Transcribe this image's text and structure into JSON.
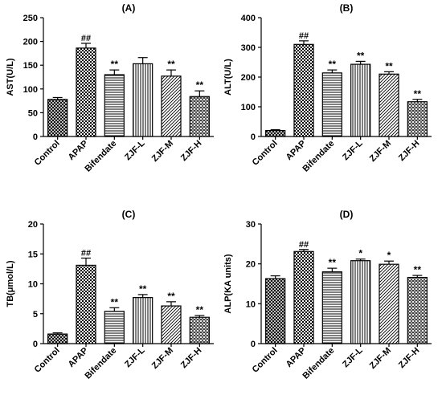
{
  "chart_data": [
    {
      "type": "bar",
      "title": "(A)",
      "ylabel": "AST(U/L)",
      "xlabel": "",
      "categories": [
        "Control",
        "APAP",
        "Bifendate",
        "ZJF-L",
        "ZJF-M",
        "ZJF-H"
      ],
      "values": [
        78,
        186,
        130,
        153,
        127,
        84
      ],
      "errors": [
        4,
        10,
        10,
        13,
        13,
        12
      ],
      "annotations": [
        "",
        "##",
        "**",
        "",
        "**",
        "**"
      ],
      "ylim": [
        0,
        250
      ],
      "yticks": [
        0,
        50,
        100,
        150,
        200,
        250
      ]
    },
    {
      "type": "bar",
      "title": "(B)",
      "ylabel": "ALT(U/L)",
      "xlabel": "",
      "categories": [
        "Control",
        "APAP",
        "Bifendate",
        "ZJF-L",
        "ZJF-M",
        "ZJF-H"
      ],
      "values": [
        20,
        310,
        214,
        243,
        210,
        117
      ],
      "errors": [
        3,
        12,
        10,
        10,
        8,
        8
      ],
      "annotations": [
        "",
        "##",
        "**",
        "**",
        "**",
        "**"
      ],
      "ylim": [
        0,
        400
      ],
      "yticks": [
        0,
        100,
        200,
        300,
        400
      ]
    },
    {
      "type": "bar",
      "title": "(C)",
      "ylabel": "TB(μmol/L)",
      "xlabel": "",
      "categories": [
        "Control",
        "APAP",
        "Bifendate",
        "ZJF-L",
        "ZJF-M",
        "ZJF-H"
      ],
      "values": [
        1.6,
        13.1,
        5.4,
        7.7,
        6.3,
        4.4
      ],
      "errors": [
        0.2,
        1.2,
        0.6,
        0.5,
        0.7,
        0.3
      ],
      "annotations": [
        "",
        "##",
        "**",
        "**",
        "**",
        "**"
      ],
      "ylim": [
        0,
        20
      ],
      "yticks": [
        0,
        5,
        10,
        15,
        20
      ]
    },
    {
      "type": "bar",
      "title": "(D)",
      "ylabel": "ALP(KA units)",
      "xlabel": "",
      "categories": [
        "Control",
        "APAP",
        "Bifendate",
        "ZJF-L",
        "ZJF-M",
        "ZJF-H"
      ],
      "values": [
        16.3,
        23.1,
        18.0,
        20.8,
        19.9,
        16.6
      ],
      "errors": [
        0.7,
        0.5,
        0.9,
        0.4,
        0.8,
        0.5
      ],
      "annotations": [
        "",
        "##",
        "**",
        "*",
        "*",
        "**"
      ],
      "ylim": [
        0,
        30
      ],
      "yticks": [
        0,
        10,
        20,
        30
      ]
    }
  ]
}
